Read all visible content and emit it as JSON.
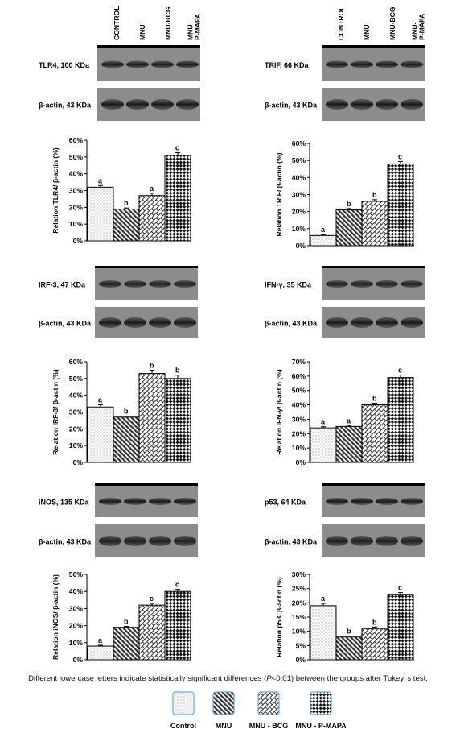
{
  "headers": [
    "CONTROL",
    "MNU",
    "MNU-BCG",
    "MNU-\nP-MAPA"
  ],
  "chart_data": [
    {
      "type": "bar",
      "blot": "TLR4, 100 KDa",
      "actin": "β-actin, 43 KDa",
      "ylabel": "Relation TLR4/ β-actin (%)",
      "ylim": [
        0,
        60
      ],
      "step": 10,
      "ticks": [
        "0%",
        "10%",
        "20%",
        "30%",
        "40%",
        "50%",
        "60%"
      ],
      "categories": [
        "Control",
        "MNU",
        "MNU - BCG",
        "MNU - P-MAPA"
      ],
      "values": [
        32,
        19,
        27,
        51
      ],
      "errors": [
        1,
        0.6,
        1.4,
        1.6
      ],
      "letters": [
        "a",
        "b",
        "a",
        "c"
      ]
    },
    {
      "type": "bar",
      "blot": "TRIF, 66 KDa",
      "actin": "β-actin, 43 KDa",
      "ylabel": "Relation TRIF/ β-actin (%)",
      "ylim": [
        0,
        60
      ],
      "step": 10,
      "ticks": [
        "0%",
        "10%",
        "20%",
        "30%",
        "40%",
        "50%",
        "60%"
      ],
      "categories": [
        "Control",
        "MNU",
        "MNU - BCG",
        "MNU - P-MAPA"
      ],
      "values": [
        6,
        21,
        26,
        48
      ],
      "errors": [
        0.5,
        0.8,
        1,
        1.4
      ],
      "letters": [
        "a",
        "b",
        "b",
        "c"
      ]
    },
    {
      "type": "bar",
      "blot": "IRF-3, 47 KDa",
      "actin": "β-actin, 43 KDa",
      "ylabel": "Relation IRF-3/ β-actin (%)",
      "ylim": [
        0,
        60
      ],
      "step": 10,
      "ticks": [
        "0%",
        "10%",
        "20%",
        "30%",
        "40%",
        "50%",
        "60%"
      ],
      "categories": [
        "Control",
        "MNU",
        "MNU - BCG",
        "MNU - P-MAPA"
      ],
      "values": [
        33,
        27,
        53,
        50
      ],
      "errors": [
        1.3,
        0.6,
        2,
        2
      ],
      "letters": [
        "a",
        "b",
        "b",
        "b"
      ]
    },
    {
      "type": "bar",
      "blot": "IFN-γ, 35 KDa",
      "actin": "β-actin, 43 KDa",
      "ylabel": "Relation IFN-γ/ β-actin (%)",
      "ylim": [
        0,
        70
      ],
      "step": 10,
      "ticks": [
        "0%",
        "10%",
        "20%",
        "30%",
        "40%",
        "50%",
        "60%",
        "70%"
      ],
      "categories": [
        "Control",
        "MNU",
        "MNU - BCG",
        "MNU - P-MAPA"
      ],
      "values": [
        24,
        25,
        40,
        59
      ],
      "errors": [
        0.8,
        0.6,
        1.1,
        1.8
      ],
      "letters": [
        "a",
        "a",
        "b",
        "c"
      ]
    },
    {
      "type": "bar",
      "blot": "iNOS, 135 KDa",
      "actin": "β-actin, 43 KDa",
      "ylabel": "Relation iNOS/ β-actin (%)",
      "ylim": [
        0,
        50
      ],
      "step": 10,
      "ticks": [
        "0%",
        "10%",
        "20%",
        "30%",
        "40%",
        "50%"
      ],
      "categories": [
        "Control",
        "MNU",
        "MNU - BCG",
        "MNU - P-MAPA"
      ],
      "values": [
        8,
        19,
        32,
        40
      ],
      "errors": [
        0.5,
        0.6,
        1,
        1.2
      ],
      "letters": [
        "a",
        "b",
        "c",
        "c"
      ]
    },
    {
      "type": "bar",
      "blot": "p53, 64 KDa",
      "actin": "β-actin, 43 KDa",
      "ylabel": "Relation p53/ β-actin (%)",
      "ylim": [
        0,
        30
      ],
      "step": 5,
      "ticks": [
        "0%",
        "5%",
        "10%",
        "15%",
        "20%",
        "25%",
        "30%"
      ],
      "categories": [
        "Control",
        "MNU",
        "MNU - BCG",
        "MNU - P-MAPA"
      ],
      "values": [
        19,
        8,
        11,
        23
      ],
      "errors": [
        0.8,
        0.3,
        0.5,
        0.6
      ],
      "letters": [
        "a",
        "b",
        "b",
        "c"
      ]
    }
  ],
  "footnote": {
    "pre": "Different lowercase letters indicate statistically significant differences (",
    "p": "P",
    "post": "<0.01) between the groups after Tukey",
    "sup": "'",
    "end": " s test."
  },
  "legend": [
    "Control",
    "MNU",
    "MNU - BCG",
    "MNU - P-MAPA"
  ]
}
